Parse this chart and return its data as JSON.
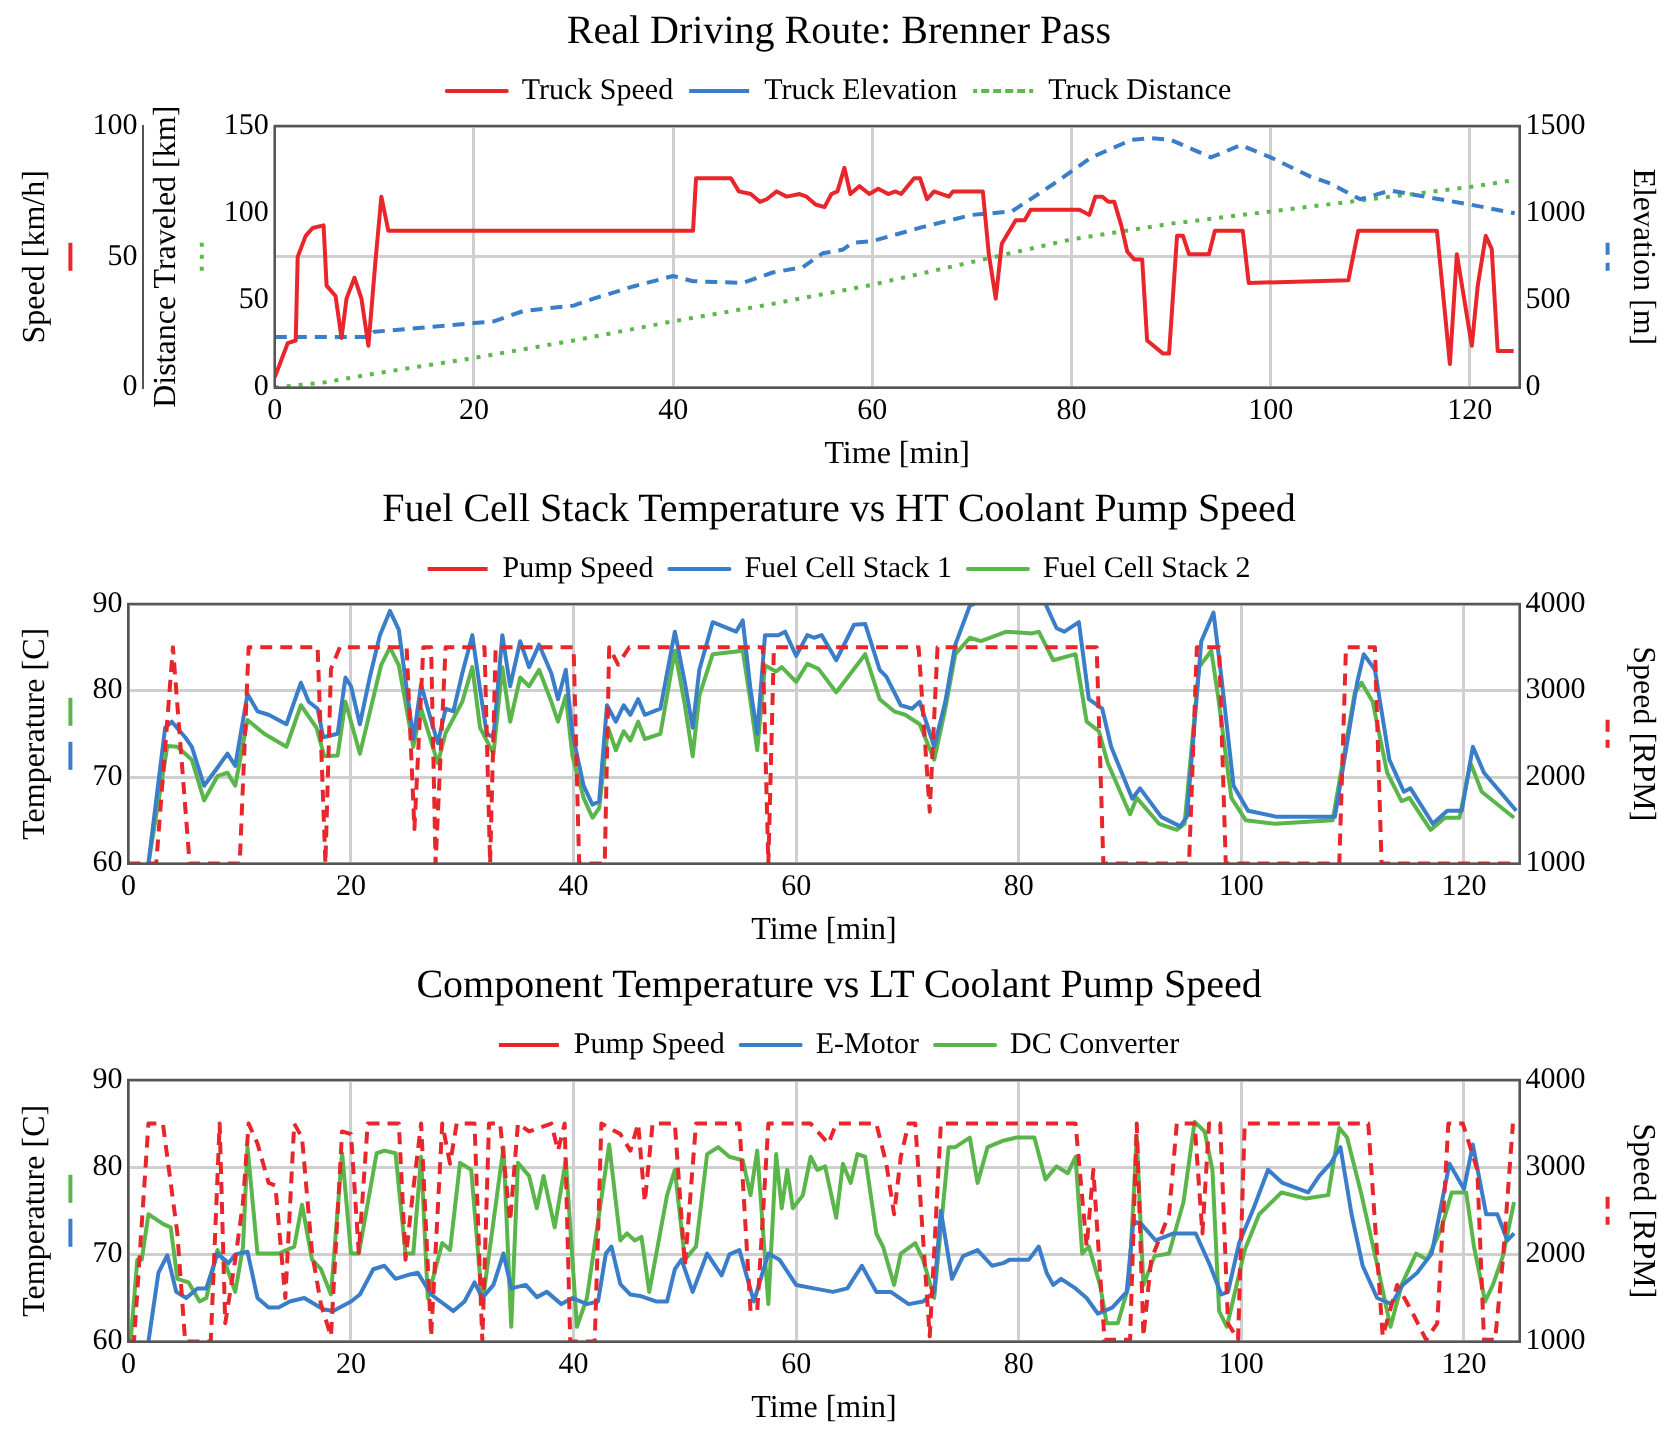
{
  "chart_data": [
    {
      "type": "line",
      "title": "Real Driving Route: Brenner Pass",
      "xlabel": "Time [min]",
      "ylabel": "Speed [km/h]",
      "y3label": "Distance Traveled [km]",
      "y2label": "Elevation [m]",
      "xlim": [
        0,
        125
      ],
      "xticks": [
        0,
        20,
        40,
        60,
        80,
        100,
        120
      ],
      "ylim": [
        0,
        100
      ],
      "yticks": [
        0,
        50,
        100
      ],
      "y3lim": [
        0,
        150
      ],
      "y3ticks": [
        0,
        50,
        100,
        150
      ],
      "y2lim": [
        0,
        1500
      ],
      "y2ticks": [
        0,
        500,
        1000,
        1500
      ],
      "grid": true,
      "legend": "top",
      "series": [
        {
          "name": "Truck Speed",
          "color": "#e8262b",
          "line_style": "solid",
          "axis": "y",
          "x": [
            0,
            0.4,
            1.3,
            2.1,
            2.3,
            3.1,
            3.8,
            4.9,
            5.2,
            6.1,
            6.7,
            7.2,
            8,
            8.7,
            9.4,
            10.1,
            10.7,
            11.4,
            42,
            42.3,
            45.8,
            46.6,
            47.8,
            48.7,
            49.4,
            50.4,
            51.4,
            52.7,
            53.4,
            54.3,
            55.2,
            55.9,
            56.5,
            57.2,
            57.8,
            58.7,
            59.7,
            60.6,
            61.6,
            62.3,
            62.9,
            64.2,
            64.8,
            65.5,
            66.2,
            67.7,
            68.1,
            71.1,
            71.7,
            72.4,
            73,
            74.4,
            75.3,
            75.9,
            77.5,
            78.8,
            80.8,
            81.8,
            82.4,
            83.1,
            83.7,
            84.3,
            85,
            85.6,
            86.3,
            87.1,
            87.6,
            89.2,
            89.8,
            90.6,
            91.2,
            91.8,
            93.8,
            94.4,
            97.2,
            97.8,
            107.8,
            108.8,
            116.7,
            118,
            118.7,
            120.2,
            120.8,
            121.6,
            122.2,
            122.8,
            124.4
          ],
          "values": [
            4,
            8,
            17,
            18,
            50,
            58,
            61,
            62,
            39,
            35,
            19,
            34,
            42,
            34,
            16,
            48,
            73,
            60,
            60,
            80,
            80,
            75,
            74,
            71,
            72,
            75,
            73,
            74,
            73,
            70,
            69,
            74,
            75,
            84,
            74,
            77,
            74,
            76,
            74,
            75,
            74,
            80,
            80,
            72,
            75,
            73,
            75,
            75,
            51,
            34,
            55,
            64,
            64,
            68,
            68,
            68,
            68,
            66,
            73,
            73,
            71,
            71,
            62,
            52,
            49,
            49,
            18,
            13,
            13,
            58,
            58,
            51,
            51,
            60,
            60,
            40,
            41,
            60,
            60,
            9,
            51,
            16,
            39,
            58,
            53,
            14,
            14
          ]
        },
        {
          "name": "Truck Elevation",
          "color": "#3a7dc9",
          "line_style": "dashed",
          "axis": "y2",
          "x": [
            0,
            9.4,
            10,
            20,
            22,
            25,
            30,
            32,
            36,
            40,
            42,
            47,
            50,
            53,
            55,
            57,
            58,
            60,
            65,
            70,
            74,
            78,
            82,
            86,
            88,
            90,
            94,
            97,
            100,
            104,
            106,
            109,
            112,
            115,
            120,
            124.5
          ],
          "values": [
            290,
            290,
            320,
            370,
            380,
            440,
            470,
            510,
            580,
            640,
            610,
            600,
            660,
            690,
            770,
            790,
            830,
            840,
            920,
            990,
            1010,
            1160,
            1320,
            1420,
            1430,
            1420,
            1320,
            1390,
            1320,
            1210,
            1170,
            1080,
            1130,
            1100,
            1050,
            1000
          ]
        },
        {
          "name": "Truck Distance",
          "color": "#5cb84c",
          "line_style": "dotted",
          "axis": "y3",
          "x": [
            0,
            5,
            10,
            20,
            30,
            40,
            50,
            60,
            70,
            80,
            90,
            100,
            110,
            120,
            124.5
          ],
          "values": [
            0,
            3,
            8,
            17,
            27,
            38,
            48,
            59,
            72,
            85,
            94,
            101,
            108,
            115,
            119
          ]
        }
      ]
    },
    {
      "type": "line",
      "title": "Fuel Cell Stack Temperature vs HT Coolant Pump Speed",
      "xlabel": "Time [min]",
      "ylabel": "Temperature [C]",
      "y2label": "Speed [RPM]",
      "xlim": [
        0,
        125
      ],
      "xticks": [
        0,
        20,
        40,
        60,
        80,
        100,
        120
      ],
      "ylim": [
        60,
        90
      ],
      "yticks": [
        60,
        70,
        80,
        90
      ],
      "y2lim": [
        1000,
        4000
      ],
      "y2ticks": [
        1000,
        2000,
        3000,
        4000
      ],
      "grid": true,
      "legend": "top",
      "series": [
        {
          "name": "Pump Speed",
          "color": "#e8262b",
          "line_style": "dashed",
          "axis": "y2",
          "x": [
            0,
            2.5,
            4,
            5.5,
            10,
            10.8,
            17,
            17.7,
            18.2,
            19,
            25,
            25.7,
            26.5,
            27.2,
            27.6,
            28.5,
            32,
            32.5,
            33,
            40,
            40.5,
            42.8,
            43.2,
            44,
            45,
            57,
            57.5,
            58,
            71,
            72,
            72.7,
            87,
            87.6,
            95.3,
            96,
            98,
            98.6,
            108.8,
            109.4,
            112,
            112.6,
            124.5
          ],
          "values": [
            1000,
            1000,
            3500,
            1000,
            1000,
            3500,
            3500,
            1000,
            3250,
            3500,
            3500,
            1400,
            3500,
            3500,
            1000,
            3500,
            3500,
            1000,
            3500,
            3500,
            1000,
            1000,
            3500,
            3300,
            3500,
            3500,
            1000,
            3500,
            3500,
            1600,
            3500,
            3500,
            1000,
            1000,
            3500,
            3500,
            1000,
            1000,
            3500,
            3500,
            1000,
            1000
          ]
        },
        {
          "name": "Fuel Cell Stack 1",
          "color": "#3a7dc9",
          "line_style": "solid",
          "axis": "y",
          "x": [
            1.8,
            3.3,
            3.9,
            5.1,
            5.7,
            6.8,
            7.9,
            8.9,
            9.6,
            10.7,
            11.6,
            12.6,
            14.2,
            15.5,
            16.2,
            17,
            17.5,
            18.8,
            19.5,
            20,
            20.8,
            21.7,
            22.6,
            23.5,
            24.3,
            25.6,
            26.3,
            26.9,
            27.8,
            28.5,
            29.2,
            30,
            30.9,
            31.6,
            32.2,
            32.8,
            33.6,
            34.3,
            35.2,
            36,
            36.9,
            38,
            38.6,
            39.3,
            39.9,
            40.9,
            41.7,
            42.3,
            43,
            43.8,
            44.5,
            45.1,
            45.8,
            46.4,
            47.8,
            49.1,
            50,
            50.7,
            51.3,
            52.5,
            54.6,
            55.2,
            55.9,
            56.5,
            57.2,
            58.4,
            59,
            60,
            61,
            61.6,
            62.3,
            63.6,
            65.2,
            66.2,
            67.5,
            68.1,
            69.4,
            70.4,
            71.1,
            72.4,
            73.4,
            74.3,
            75.6,
            76,
            79,
            82.4,
            83.4,
            84.1,
            85.4,
            86.3,
            87.5,
            88.3,
            90.2,
            90.9,
            92.8,
            94.5,
            95.1,
            96.4,
            97.5,
            98.2,
            99.3,
            100.6,
            103.2,
            108.4,
            110.4,
            111,
            112,
            113.3,
            114.6,
            115.2,
            117.2,
            118.5,
            119.8,
            120.8,
            121.8,
            124.7
          ],
          "values": [
            60,
            75.7,
            76.4,
            74.6,
            73.5,
            69,
            70.9,
            72.7,
            71.3,
            79.6,
            77.6,
            77.2,
            76.1,
            80.9,
            78.7,
            77.9,
            74.6,
            75,
            81.5,
            80.5,
            76.1,
            81.6,
            86.4,
            89.2,
            87,
            74.4,
            80.7,
            77.9,
            73.9,
            77.9,
            77.6,
            82,
            86.4,
            80.1,
            75,
            74.6,
            86.4,
            80.5,
            85.7,
            82.7,
            85.3,
            82,
            79,
            82.4,
            75,
            69,
            66.8,
            67.2,
            78.3,
            76.4,
            78.3,
            77.2,
            79,
            77.2,
            77.9,
            86.8,
            80.9,
            75.7,
            82.4,
            87.9,
            86.8,
            88.1,
            80.1,
            75,
            86.4,
            86.4,
            86.8,
            84,
            86.4,
            86.1,
            86.4,
            83.5,
            87.6,
            87.7,
            82.4,
            81.6,
            78.3,
            77.9,
            78.7,
            73.5,
            78.7,
            85.3,
            89.8,
            90,
            null,
            90,
            87.2,
            86.8,
            87.9,
            79,
            77.9,
            73.5,
            67.5,
            68.7,
            65.4,
            64.3,
            65.4,
            85.7,
            89,
            81.6,
            69,
            66.1,
            65.4,
            65.4,
            80.9,
            84.2,
            82.4,
            72,
            68.3,
            68.7,
            64.6,
            66.1,
            66.1,
            73.5,
            70.5,
            66.1
          ]
        },
        {
          "name": "Fuel Cell Stack 2",
          "color": "#5ab54a",
          "line_style": "solid",
          "axis": "y",
          "x": [
            1.8,
            3.5,
            4.4,
            5.7,
            6.8,
            8,
            8.9,
            9.6,
            10.7,
            12.2,
            14.2,
            15.5,
            16.9,
            17.6,
            18.8,
            19.5,
            20.8,
            22.7,
            23.5,
            24.3,
            25.6,
            26.3,
            27.8,
            28.5,
            30,
            30.9,
            31.6,
            32.8,
            33.6,
            34.3,
            35.2,
            36,
            36.9,
            38,
            38.6,
            39.3,
            39.9,
            40.9,
            41.7,
            42.3,
            43.1,
            43.8,
            44.5,
            45.1,
            45.8,
            46.4,
            47.8,
            49.1,
            50,
            50.7,
            51.3,
            52.5,
            55.2,
            55.9,
            56.5,
            57.2,
            58.2,
            58.7,
            60,
            61,
            62,
            63.6,
            66.2,
            67.5,
            68.8,
            69.8,
            71.1,
            72.4,
            73.4,
            74.3,
            75.6,
            76.6,
            78.9,
            81.2,
            81.8,
            83.1,
            85.1,
            86.1,
            87.2,
            88,
            90,
            90.6,
            92.6,
            94.2,
            94.9,
            96.2,
            97.3,
            97.9,
            99.1,
            100.4,
            103,
            108.2,
            110.2,
            110.8,
            111.8,
            113.1,
            114.4,
            115.1,
            117,
            118.3,
            119.6,
            120.6,
            121.6,
            124.5
          ],
          "values": [
            60,
            73.6,
            73.5,
            72,
            67.3,
            70.1,
            70.5,
            69,
            76.6,
            75,
            73.5,
            78.3,
            75.7,
            72.4,
            72.5,
            78.7,
            72.7,
            82.9,
            85,
            82.9,
            73.5,
            77.9,
            71.6,
            75.1,
            78.7,
            82.7,
            75.7,
            72.7,
            82.7,
            76.4,
            81.5,
            80.5,
            82.4,
            78.7,
            76.4,
            79.4,
            72.4,
            67.6,
            65.3,
            66.4,
            75.7,
            73.1,
            75.3,
            74.2,
            76.4,
            74.4,
            75,
            84.6,
            78.3,
            72.4,
            79.4,
            84.2,
            84.6,
            78.7,
            73.1,
            82.9,
            82.2,
            82.7,
            81,
            83.1,
            82.5,
            79.8,
            84.2,
            79,
            77.6,
            77.2,
            76.1,
            72,
            77.9,
            84.2,
            86.1,
            85.7,
            86.8,
            86.6,
            86.8,
            83.5,
            84.2,
            76.4,
            75.3,
            71.6,
            65.7,
            67.6,
            64.6,
            63.9,
            64.6,
            82.7,
            84.6,
            79.4,
            67.6,
            65,
            64.6,
            65,
            79.8,
            80.9,
            78.7,
            70.5,
            67.2,
            67.6,
            63.9,
            65.3,
            65.3,
            71.6,
            68.3,
            65.3
          ]
        }
      ]
    },
    {
      "type": "line",
      "title": "Component Temperature vs LT Coolant Pump Speed",
      "xlabel": "Time [min]",
      "ylabel": "Temperature [C]",
      "y2label": "Speed [RPM]",
      "xlim": [
        0,
        125
      ],
      "xticks": [
        0,
        20,
        40,
        60,
        80,
        100,
        120
      ],
      "ylim": [
        60,
        90
      ],
      "yticks": [
        60,
        70,
        80,
        90
      ],
      "y2lim": [
        1000,
        4000
      ],
      "y2ticks": [
        1000,
        2000,
        3000,
        4000
      ],
      "grid": true,
      "legend": "top",
      "series": [
        {
          "name": "Pump Speed",
          "color": "#e8262b",
          "line_style": "dashed",
          "axis": "y2",
          "x": [
            0,
            0.5,
            1.8,
            3.1,
            4.4,
            5.1,
            7.4,
            8.2,
            8.7,
            9.6,
            10.3,
            10.8,
            11.6,
            12.6,
            13.2,
            14.1,
            14.9,
            15.6,
            16.5,
            17.3,
            18.2,
            19.2,
            20,
            20.7,
            21.5,
            24.3,
            24.9,
            25.6,
            26.3,
            27.2,
            28.2,
            28.9,
            29.5,
            31.1,
            31.8,
            32.4,
            33.4,
            34.3,
            35,
            36,
            38,
            38.6,
            39.2,
            39.7,
            41.9,
            42.5,
            44.2,
            45.1,
            45.8,
            46.4,
            47.1,
            49.1,
            50,
            51,
            54.9,
            55.9,
            56.5,
            57.5,
            61.3,
            62.9,
            63.6,
            67.2,
            68.1,
            68.8,
            69.4,
            70.1,
            70.7,
            72,
            73,
            85.1,
            86.1,
            86.7,
            87.7,
            90,
            90.6,
            91.2,
            91.9,
            93.5,
            94.2,
            95.8,
            96.5,
            97.1,
            98.1,
            98.8,
            99.7,
            100.3,
            111.4,
            112.7,
            114,
            115.3,
            116.6,
            117.6,
            118.6,
            119.9,
            121.2,
            121.8,
            122.8,
            123.5,
            124.4
          ],
          "values": [
            1000,
            1000,
            3500,
            3500,
            2240,
            1000,
            1000,
            3500,
            1210,
            1940,
            2600,
            3500,
            3270,
            2820,
            2790,
            1500,
            3500,
            3340,
            2020,
            1430,
            1060,
            3410,
            3380,
            2020,
            3500,
            3500,
            1940,
            2750,
            3500,
            1060,
            3500,
            3040,
            3500,
            3500,
            1000,
            3500,
            3500,
            2380,
            3500,
            3410,
            3500,
            3190,
            3500,
            1000,
            1000,
            3500,
            3380,
            3190,
            3500,
            2600,
            3500,
            3500,
            1870,
            3500,
            3500,
            1350,
            1350,
            3500,
            3500,
            3270,
            3500,
            3500,
            3040,
            2460,
            3120,
            3500,
            3500,
            1060,
            3500,
            3500,
            2090,
            2970,
            1020,
            1020,
            3500,
            1060,
            1940,
            2460,
            3500,
            3500,
            2240,
            3500,
            3500,
            1210,
            1020,
            3500,
            3500,
            1060,
            1650,
            1350,
            1020,
            1210,
            3500,
            3500,
            2970,
            1020,
            1020,
            1940,
            3500
          ]
        },
        {
          "name": "E-Motor",
          "color": "#3a7dc9",
          "line_style": "solid",
          "axis": "y",
          "x": [
            1.8,
            2.7,
            3.5,
            4.3,
            5.2,
            6.2,
            7,
            8,
            9,
            9.6,
            10.7,
            11.6,
            12.6,
            13.5,
            14.5,
            15.8,
            17.5,
            18.4,
            20,
            20.8,
            22,
            23,
            24,
            25.3,
            26,
            27.2,
            29.2,
            30.2,
            31.1,
            31.8,
            32.8,
            33.7,
            34.4,
            35.7,
            36.7,
            37.6,
            38.9,
            39.9,
            41.2,
            42.2,
            42.9,
            43.4,
            44.2,
            45.1,
            46.1,
            47.4,
            48.4,
            49.1,
            49.7,
            50.7,
            52,
            53.3,
            54,
            54.9,
            56.2,
            57.5,
            58.5,
            60,
            61.6,
            63.3,
            64.6,
            65.9,
            67.2,
            68.5,
            70.1,
            71.4,
            72.4,
            73,
            74,
            75,
            76.3,
            77.6,
            78.6,
            79.2,
            80.9,
            81.8,
            82.5,
            83.1,
            83.8,
            85.1,
            86.1,
            87.1,
            88.4,
            89.7,
            90.3,
            91,
            92.3,
            93.9,
            95.9,
            97.2,
            98.2,
            98.8,
            99.8,
            101.1,
            102.4,
            103.7,
            106,
            107,
            108,
            108.9,
            109.9,
            110.9,
            112.2,
            113.5,
            114.5,
            115.8,
            117.1,
            118.7,
            120,
            120.8,
            122,
            123,
            123.9,
            124.5
          ],
          "values": [
            60,
            67.9,
            69.9,
            65.7,
            65,
            66.1,
            66.1,
            70.1,
            69,
            70,
            70.3,
            65,
            63.9,
            63.9,
            64.6,
            65,
            63.7,
            63.5,
            64.6,
            65.4,
            68.3,
            68.7,
            67.2,
            67.7,
            67.9,
            65.4,
            63.5,
            64.6,
            66.8,
            65,
            66.5,
            70.1,
            66.1,
            66.5,
            65.1,
            65.7,
            64.3,
            65,
            64.3,
            64.6,
            70.1,
            70.9,
            66.6,
            65.4,
            65.2,
            64.6,
            64.6,
            68.3,
            69.4,
            65.7,
            70.1,
            67.6,
            70,
            70.5,
            64.6,
            70.1,
            69.4,
            66.5,
            66.1,
            65.7,
            66.1,
            68.7,
            65.7,
            65.7,
            64.3,
            64.6,
            65.7,
            75,
            67.2,
            69.8,
            70.5,
            68.7,
            69,
            69.4,
            69.4,
            70.9,
            67.9,
            66.5,
            67.2,
            66.1,
            65,
            63.2,
            63.9,
            65.7,
            73.8,
            73.5,
            71.6,
            72.4,
            72.4,
            68.7,
            65.4,
            65.7,
            71.3,
            75.3,
            79.7,
            78.2,
            77.1,
            79,
            80.4,
            82.3,
            74.6,
            68.7,
            65,
            64.3,
            66.5,
            67.9,
            70.1,
            80.4,
            77.5,
            82.6,
            74.6,
            74.6,
            71.6,
            72.4
          ]
        },
        {
          "name": "DC Converter",
          "color": "#5ab54a",
          "line_style": "solid",
          "axis": "y",
          "x": [
            0.2,
            0.8,
            1.2,
            1.8,
            3.1,
            3.8,
            4.4,
            5.4,
            6.4,
            7,
            8,
            8.7,
            9.6,
            10.3,
            10.7,
            11.6,
            13.5,
            14.9,
            15.6,
            16.5,
            17.3,
            18.2,
            19.2,
            20,
            20.7,
            22.3,
            23,
            24,
            24.9,
            25.6,
            26.3,
            26.9,
            28.2,
            28.9,
            29.8,
            30.8,
            31.8,
            33.7,
            34.4,
            35,
            36,
            36.7,
            37.3,
            38.3,
            39.3,
            40.3,
            41.2,
            43.2,
            44.2,
            44.8,
            45.5,
            46.1,
            46.8,
            48.4,
            49.1,
            50,
            51,
            52,
            53,
            54,
            55.2,
            55.9,
            56.5,
            57.5,
            58.2,
            58.7,
            59.2,
            59.7,
            60.6,
            61.3,
            61.9,
            62.6,
            63.6,
            64.2,
            64.9,
            65.5,
            66.2,
            67.2,
            67.8,
            68.8,
            69.4,
            70.7,
            71.4,
            72.4,
            73.7,
            74.3,
            75.6,
            76.3,
            77.2,
            78.5,
            79.8,
            81.4,
            82.4,
            83.4,
            84.4,
            85.1,
            85.7,
            86.3,
            87.3,
            87.9,
            88.9,
            89.9,
            90.6,
            91.2,
            92.2,
            93.5,
            94.8,
            95.8,
            96.7,
            97.4,
            98,
            98.7,
            100.3,
            101.6,
            103.6,
            105.8,
            107.8,
            108.8,
            109.5,
            110.8,
            112.1,
            113.4,
            114.4,
            115.7,
            116.7,
            118,
            118.9,
            120.2,
            120.9,
            121.9,
            122.6,
            123.5,
            124.5
          ],
          "values": [
            60,
            69.4,
            69.4,
            74.6,
            73.5,
            73.1,
            67.2,
            66.8,
            64.6,
            65,
            70.5,
            69,
            65.7,
            70.9,
            82.3,
            70.1,
            70.1,
            70.9,
            75.7,
            69.4,
            68.3,
            65.4,
            81.6,
            70.1,
            70.1,
            81.6,
            81.9,
            81.6,
            70.1,
            70.1,
            81.2,
            65,
            71.3,
            70.5,
            80.5,
            79.7,
            64.3,
            82.3,
            61.7,
            80.5,
            79,
            75.3,
            79,
            73.1,
            80.8,
            61.7,
            65,
            82.6,
            71.6,
            72.4,
            71.6,
            72,
            65.7,
            76.8,
            79.7,
            69.4,
            70.9,
            81.5,
            82.3,
            81.2,
            80.8,
            76.8,
            81.9,
            64.3,
            81.5,
            75.3,
            79.7,
            75.3,
            76.8,
            81.2,
            79.7,
            80.1,
            74.2,
            80.4,
            78.2,
            81.5,
            81.2,
            72.4,
            70.9,
            66.5,
            70.1,
            71.3,
            69.4,
            65,
            82.3,
            82.3,
            83.4,
            78.2,
            82.3,
            83,
            83.4,
            83.4,
            78.6,
            80.1,
            79.3,
            81.2,
            70.1,
            70.9,
            66.5,
            62.1,
            62.1,
            66.5,
            83.4,
            66.5,
            69.8,
            70.1,
            76,
            85.2,
            84.1,
            79.7,
            63.5,
            61.7,
            70.5,
            74.6,
            77.1,
            76.4,
            76.8,
            84.5,
            83.4,
            76.8,
            69.4,
            61.7,
            66.5,
            70.1,
            69.4,
            73.1,
            77.1,
            77.1,
            70.9,
            64.6,
            66.5,
            69.8,
            76
          ]
        }
      ]
    }
  ]
}
